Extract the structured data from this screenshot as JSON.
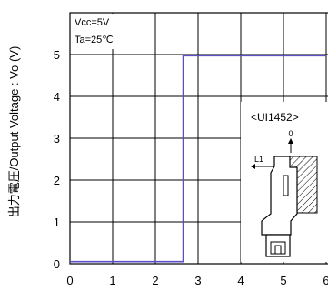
{
  "chart_data": {
    "type": "line",
    "ylabel": "出力電圧/Output Voltage : Vo (V)",
    "conditions": [
      "Vcc=5V",
      "Ta=25℃"
    ],
    "x_ticks": [
      "0",
      "1",
      "2",
      "3",
      "4",
      "5",
      "6"
    ],
    "y_ticks": [
      "0",
      "1",
      "2",
      "3",
      "4",
      "5"
    ],
    "xlim": [
      0,
      6
    ],
    "ylim": [
      0,
      6
    ],
    "grid": true,
    "series": [
      {
        "color": "#5b4fc9",
        "points": [
          [
            0,
            0.05
          ],
          [
            2.65,
            0.05
          ],
          [
            2.65,
            4.97
          ],
          [
            6,
            4.97
          ]
        ]
      }
    ],
    "inset": {
      "title": "<UI1452>",
      "axis_label": "0",
      "distance_label": "L1"
    }
  }
}
